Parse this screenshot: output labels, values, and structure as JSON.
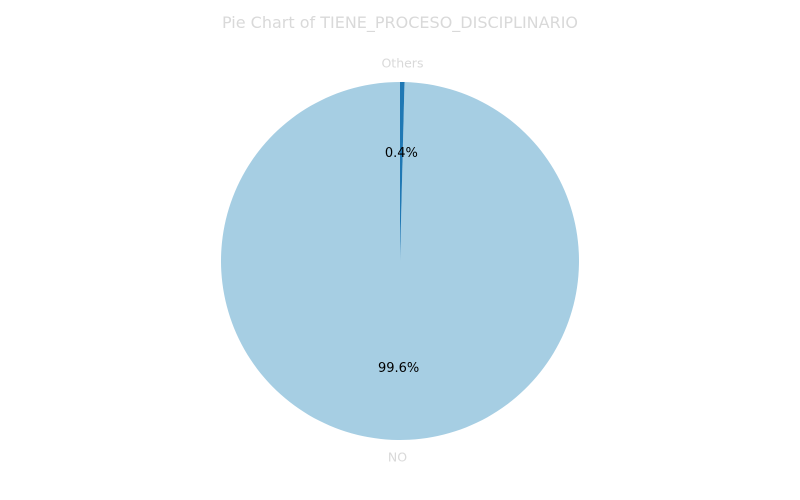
{
  "chart_data": {
    "type": "pie",
    "title": "Pie Chart of TIENE_PROCESO_DISCIPLINARIO",
    "slices": [
      {
        "label": "NO",
        "value": 99.6,
        "pct_label": "99.6%",
        "color": "#a6cee3"
      },
      {
        "label": "Others",
        "value": 0.4,
        "pct_label": "0.4%",
        "color": "#1f78b4"
      }
    ],
    "start_angle_deg": 90,
    "direction": "counterclockwise",
    "legend": "none"
  }
}
